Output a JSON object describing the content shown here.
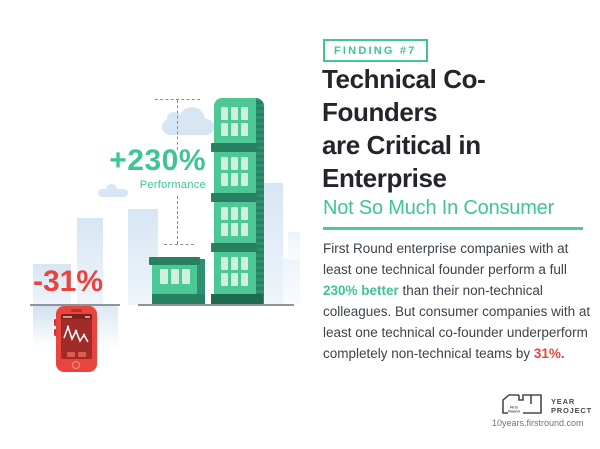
{
  "header": {
    "badge": "FINDING #7",
    "title_line1": "Technical Co-",
    "title_line2": "Founders",
    "title_line3": "are Critical in",
    "title_line4": "Enterprise",
    "subtitle": "Not So Much In Consumer"
  },
  "body": {
    "text_1": "First Round enterprise companies with at least one technical founder perform a full ",
    "highlight_green": "230% better",
    "text_2": " than their non-technical colleagues. But consumer companies with at least one technical co-founder underperform completely non-technical teams by ",
    "highlight_red": "31%."
  },
  "illustration": {
    "enterprise_value": "+230%",
    "enterprise_label": "Performance",
    "consumer_value": "-31%"
  },
  "footer": {
    "logo_word1": "First",
    "logo_word2": "Round",
    "logo_line1": "YEAR",
    "logo_line2": "PROJECT",
    "url": "10years.firstround.com"
  },
  "colors": {
    "green": "#3FC593",
    "red": "#E8433C",
    "dark_title": "#22262C"
  }
}
